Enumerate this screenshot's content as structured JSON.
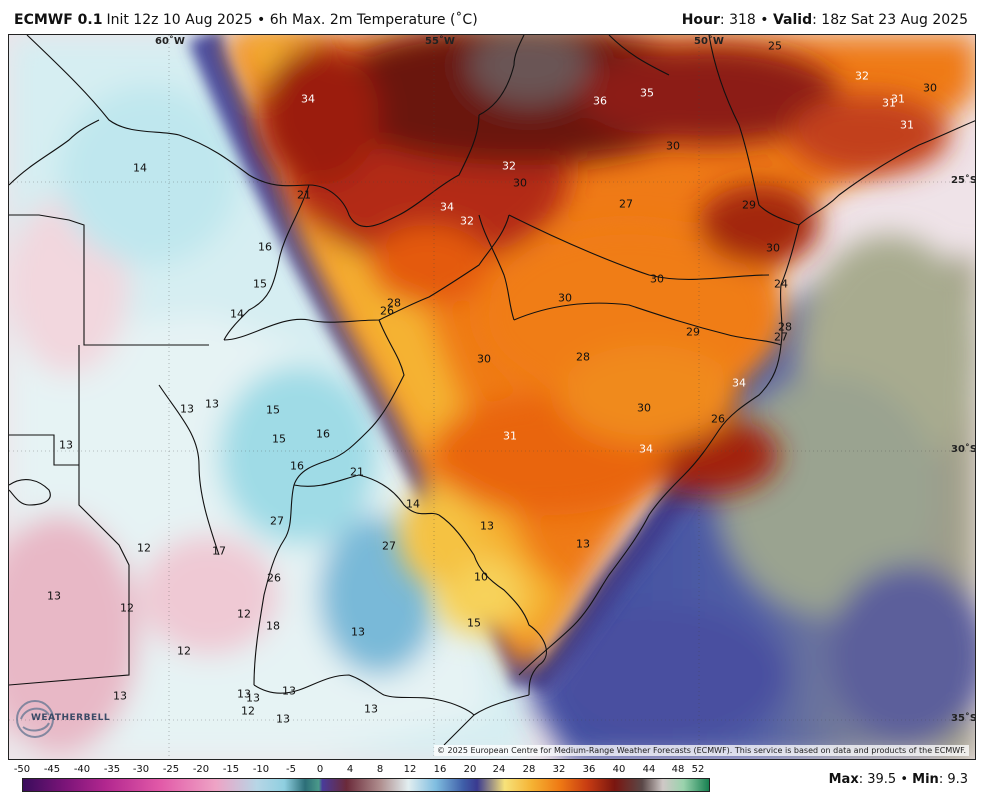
{
  "header": {
    "model": "ECMWF 0.1",
    "init_rest": "Init 12z 10 Aug 2025",
    "sep1": "•",
    "field": "6h Max. 2m Temperature (˚C)",
    "hour_label": "Hour",
    "hour_value": ": 318",
    "sep2": "•",
    "valid_label": "Valid",
    "valid_value": ": 18z Sat 23 Aug 2025"
  },
  "map": {
    "lon_labels": [
      "60˚W",
      "55˚W",
      "50˚W"
    ],
    "lat_labels": [
      "25˚S",
      "30˚S",
      "35˚S"
    ],
    "values": [
      "34",
      "36",
      "35",
      "32",
      "31",
      "31",
      "30",
      "31",
      "14",
      "32",
      "30",
      "30",
      "21",
      "34",
      "32",
      "27",
      "29",
      "25",
      "16",
      "30",
      "30",
      "24",
      "15",
      "28",
      "30",
      "28",
      "29",
      "26",
      "14",
      "27",
      "30",
      "28",
      "34",
      "13",
      "13",
      "15",
      "30",
      "26",
      "15",
      "31",
      "34",
      "13",
      "16",
      "16",
      "21",
      "14",
      "27",
      "13",
      "12",
      "17",
      "27",
      "13",
      "26",
      "10",
      "13",
      "12",
      "12",
      "18",
      "15",
      "13",
      "12",
      "13",
      "13",
      "13",
      "13",
      "12",
      "13",
      "13"
    ],
    "copyright": "© 2025 European Centre for Medium-Range Weather Forecasts (ECMWF). This service is based on data and products of the ECMWF.",
    "logo_text": "WEATHERBELL"
  },
  "colorbar": {
    "ticks": [
      "-50",
      "-45",
      "-40",
      "-35",
      "-30",
      "-25",
      "-20",
      "-15",
      "-10",
      "-5",
      "0",
      "4",
      "8",
      "12",
      "16",
      "20",
      "24",
      "28",
      "32",
      "36",
      "40",
      "44",
      "48",
      "52"
    ]
  },
  "stats": {
    "max_label": "Max",
    "max_value": ": 39.5",
    "sep": "•",
    "min_label": "Min",
    "min_value": ": 9.3"
  }
}
